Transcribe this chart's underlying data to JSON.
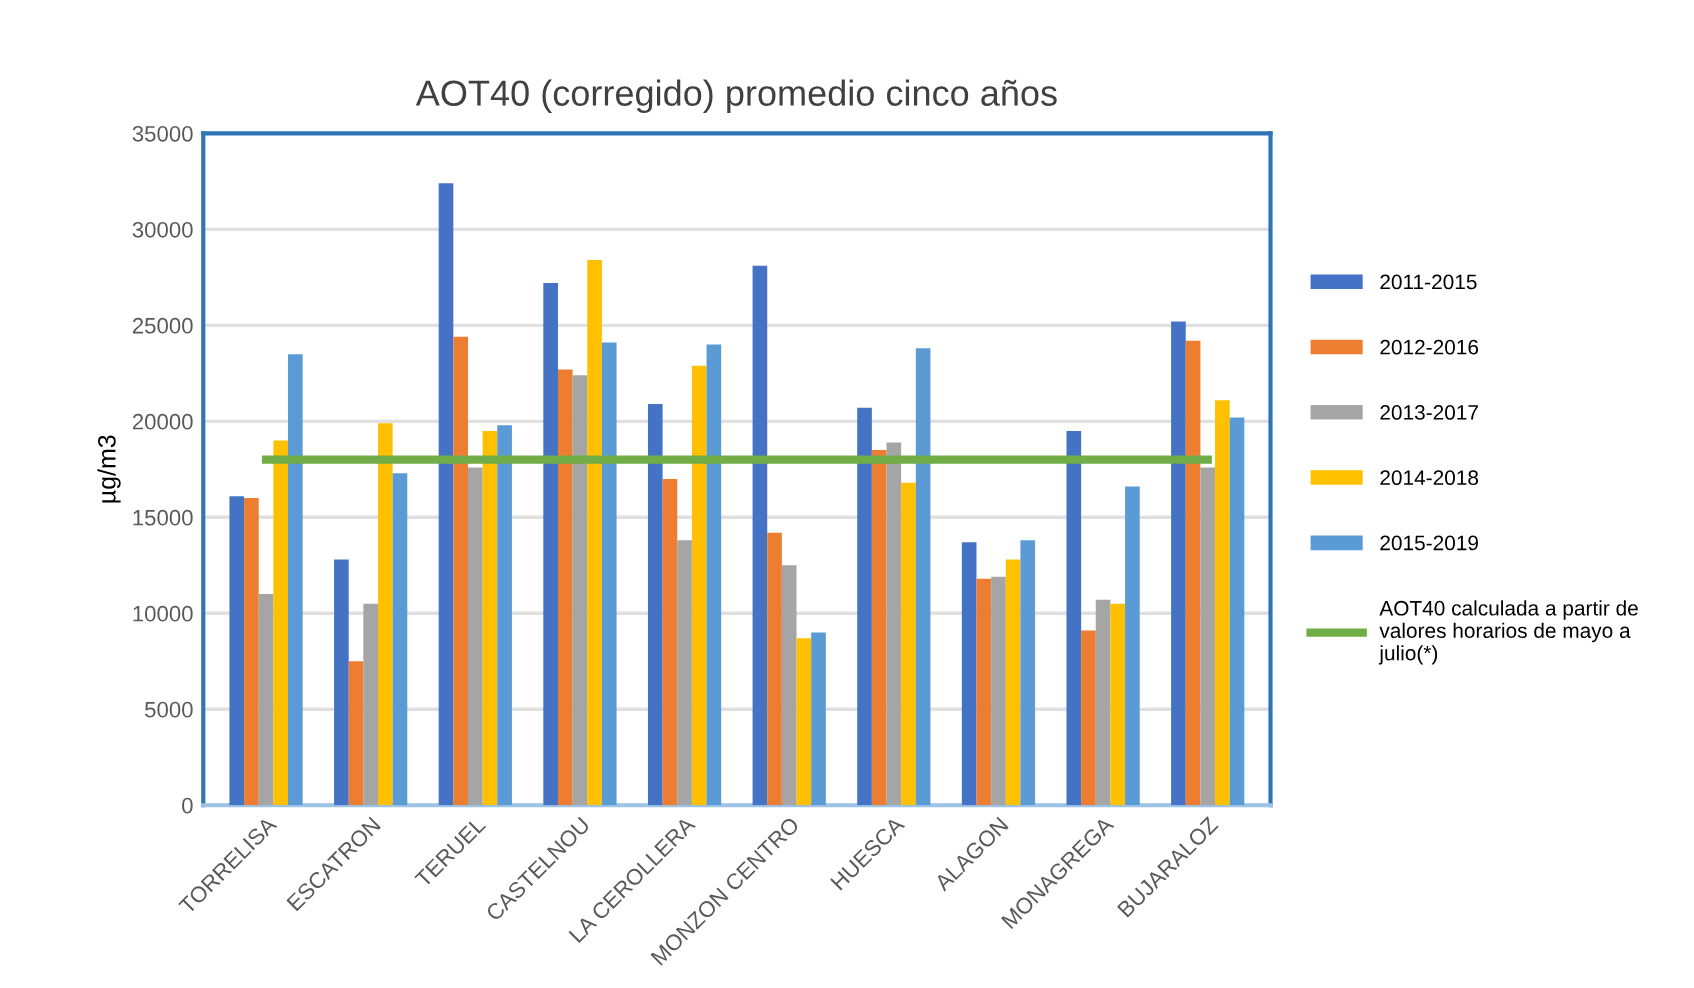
{
  "chart_data": {
    "type": "bar",
    "title": "AOT40 (corregido) promedio cinco años",
    "ylabel": "µg/m3",
    "categories": [
      "TORRELISA",
      "ESCATRON",
      "TERUEL",
      "CASTELNOU",
      "LA CEROLLERA",
      "MONZON CENTRO",
      "HUESCA",
      "ALAGON",
      "MONAGREGA",
      "BUJARALOZ"
    ],
    "series": [
      {
        "name": "2011-2015",
        "color": "#4472c4",
        "values": [
          16100,
          12800,
          32400,
          27200,
          20900,
          28100,
          20700,
          13700,
          19500,
          25200
        ]
      },
      {
        "name": "2012-2016",
        "color": "#ed7d31",
        "values": [
          16000,
          7500,
          24400,
          22700,
          17000,
          14200,
          18500,
          11800,
          9100,
          24200
        ]
      },
      {
        "name": "2013-2017",
        "color": "#a5a5a5",
        "values": [
          11000,
          10500,
          17600,
          22400,
          13800,
          12500,
          18900,
          11900,
          10700,
          17600
        ]
      },
      {
        "name": "2014-2018",
        "color": "#ffc000",
        "values": [
          19000,
          19900,
          19500,
          28400,
          22900,
          8700,
          16800,
          12800,
          10500,
          21100
        ]
      },
      {
        "name": "2015-2019",
        "color": "#5b9bd5",
        "values": [
          23500,
          17300,
          19800,
          24100,
          24000,
          9000,
          23800,
          13800,
          16600,
          20200
        ]
      },
      {
        "name": "AOT40 calculada a partir de\nvalores horarios de mayo a\njulio(*)",
        "color": "#70ad47",
        "type": "line",
        "values": [
          18000,
          18000,
          18000,
          18000,
          18000,
          18000,
          18000,
          18000,
          18000,
          18000
        ]
      }
    ],
    "ylim": [
      0,
      35000
    ],
    "yticks": [
      0,
      5000,
      10000,
      15000,
      20000,
      25000,
      30000,
      35000
    ],
    "grid": "y",
    "legend": "right"
  }
}
